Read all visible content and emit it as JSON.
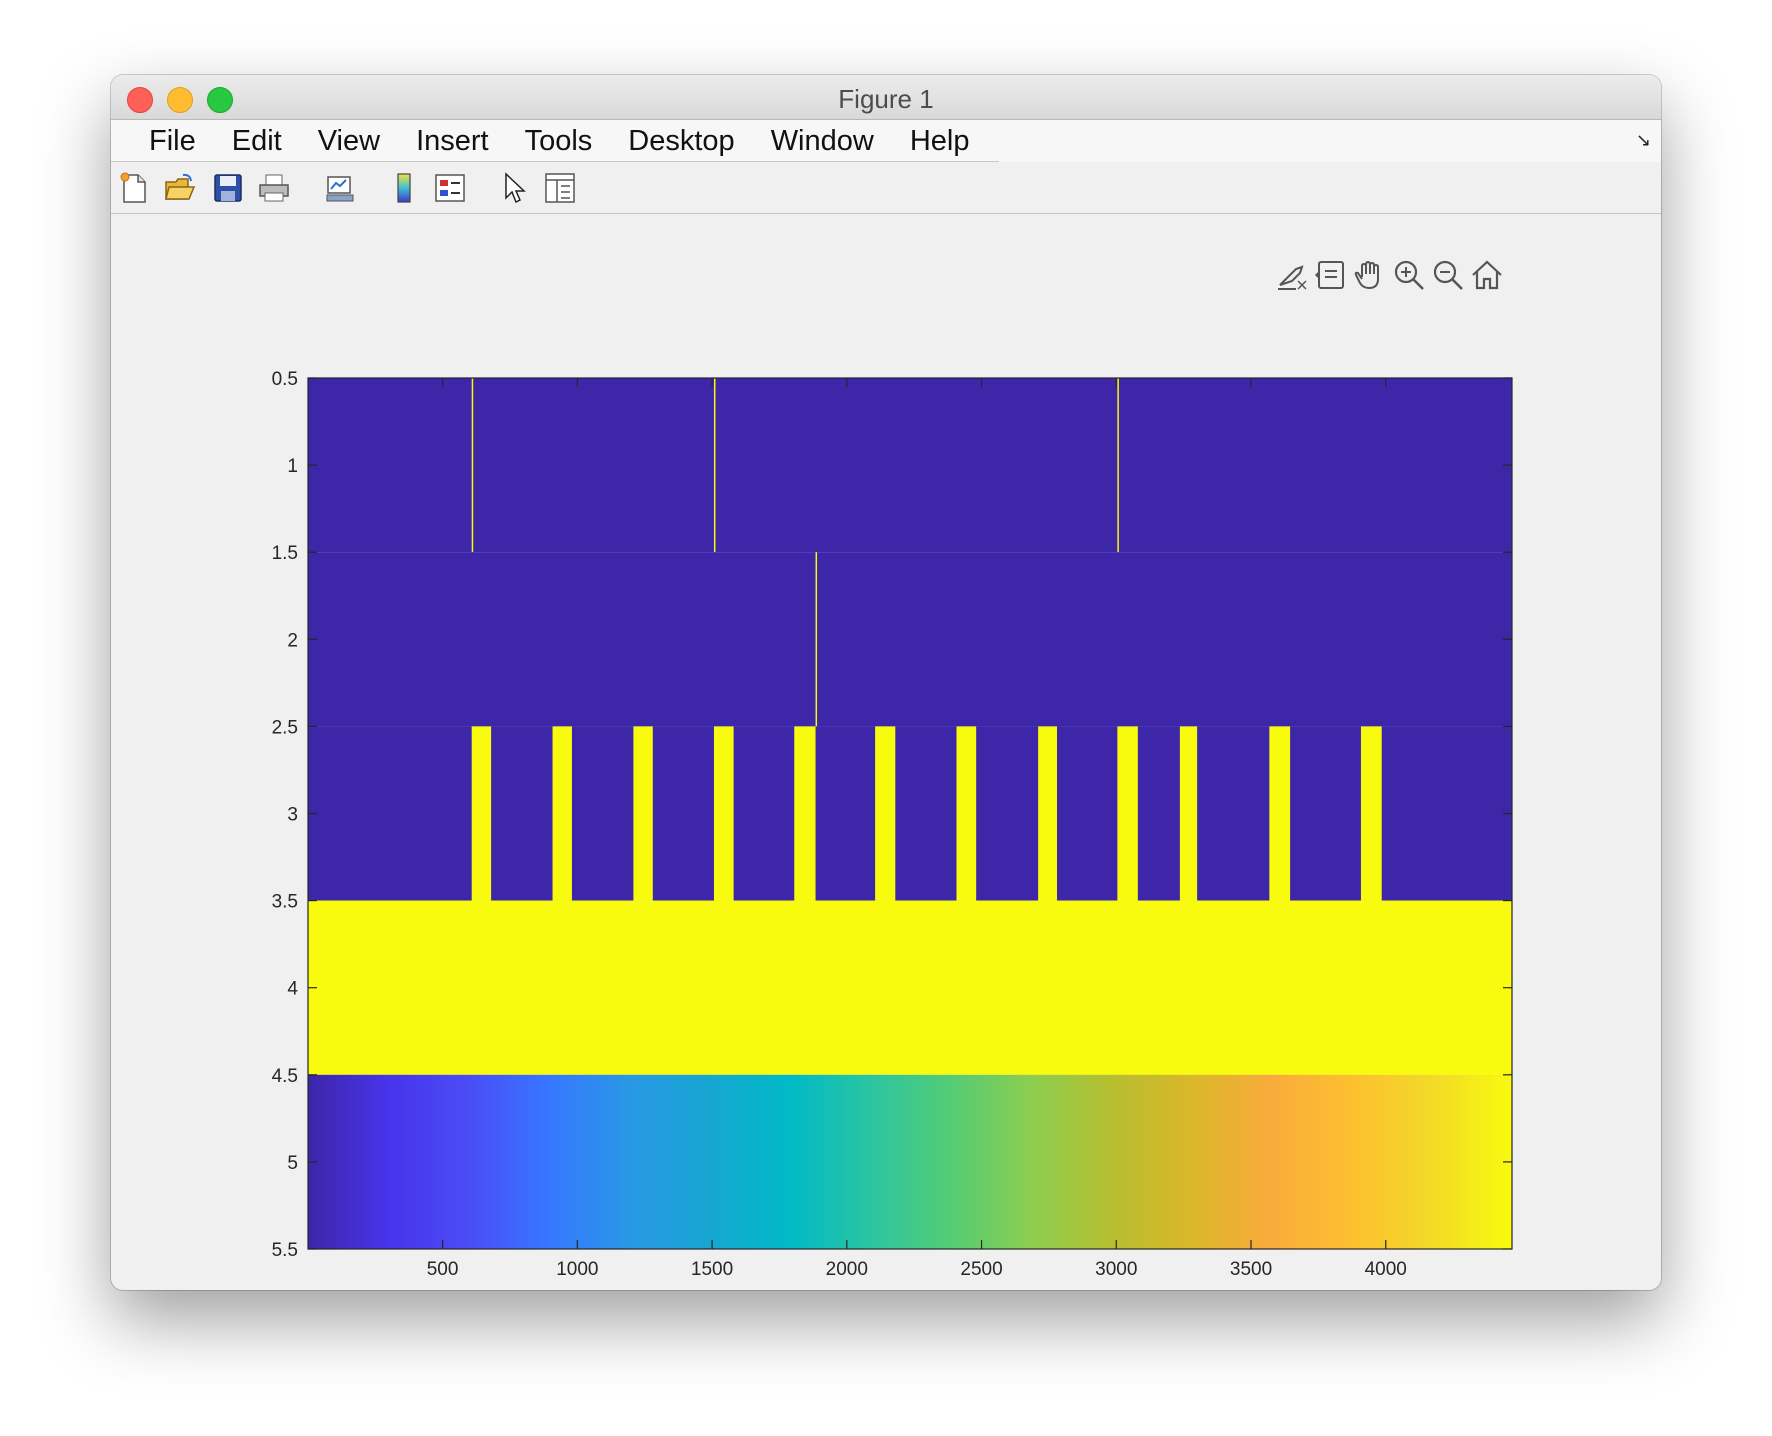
{
  "window": {
    "title": "Figure 1"
  },
  "menubar": {
    "items": [
      "File",
      "Edit",
      "View",
      "Insert",
      "Tools",
      "Desktop",
      "Window",
      "Help"
    ]
  },
  "toolbar": {
    "icons": [
      "new-figure-icon",
      "open-file-icon",
      "save-icon",
      "print-icon",
      "link-plot-icon",
      "insert-colorbar-icon",
      "insert-legend-icon",
      "edit-plot-icon",
      "property-inspector-icon"
    ]
  },
  "axes_toolbar": {
    "icons": [
      "brush-data-icon",
      "data-tips-icon",
      "pan-icon",
      "zoom-in-icon",
      "zoom-out-icon",
      "restore-view-icon"
    ]
  },
  "colors": {
    "low": "#3d26a8",
    "high": "#f9fb0e",
    "parula": [
      "#3e26a8",
      "#4734eb",
      "#4a4cf5",
      "#3777ff",
      "#2898e5",
      "#17a6d2",
      "#00bac6",
      "#2bc5a2",
      "#53cc75",
      "#8ccd4f",
      "#b5be2f",
      "#dab729",
      "#f9ab3b",
      "#fcc02f",
      "#f2da27",
      "#f8fa0d"
    ]
  },
  "chart_data": {
    "type": "heatmap",
    "title": "",
    "xlabel": "",
    "ylabel": "",
    "xlim": [
      0.5,
      4468.5
    ],
    "ylim": [
      0.5,
      5.5
    ],
    "y_direction": "reverse",
    "xticks": [
      500,
      1000,
      1500,
      2000,
      2500,
      3000,
      3500,
      4000
    ],
    "yticks": [
      0.5,
      1,
      1.5,
      2,
      2.5,
      3,
      3.5,
      4,
      4.5,
      5,
      5.5
    ],
    "ytick_labels": [
      "0.5",
      "1",
      "1.5",
      "2",
      "2.5",
      "3",
      "3.5",
      "4",
      "4.5",
      "5",
      "5.5"
    ],
    "colormap": "parula",
    "rows": [
      {
        "row": 1,
        "background": "low",
        "high_columns": [
          608,
          1507,
          3004
        ]
      },
      {
        "row": 2,
        "background": "low",
        "high_columns": [
          1884
        ]
      },
      {
        "row": 3,
        "background": "low",
        "high_bands": [
          [
            608,
            680
          ],
          [
            908,
            980
          ],
          [
            1208,
            1280
          ],
          [
            1507,
            1580
          ],
          [
            1805,
            1884
          ],
          [
            2105,
            2180
          ],
          [
            2407,
            2480
          ],
          [
            2710,
            2780
          ],
          [
            3004,
            3080
          ],
          [
            3236,
            3300
          ],
          [
            3568,
            3645
          ],
          [
            3908,
            3985
          ]
        ]
      },
      {
        "row": 4,
        "background": "high",
        "high_bands": []
      },
      {
        "row": 5,
        "gradient": "full-colormap",
        "note": ""
      }
    ]
  }
}
